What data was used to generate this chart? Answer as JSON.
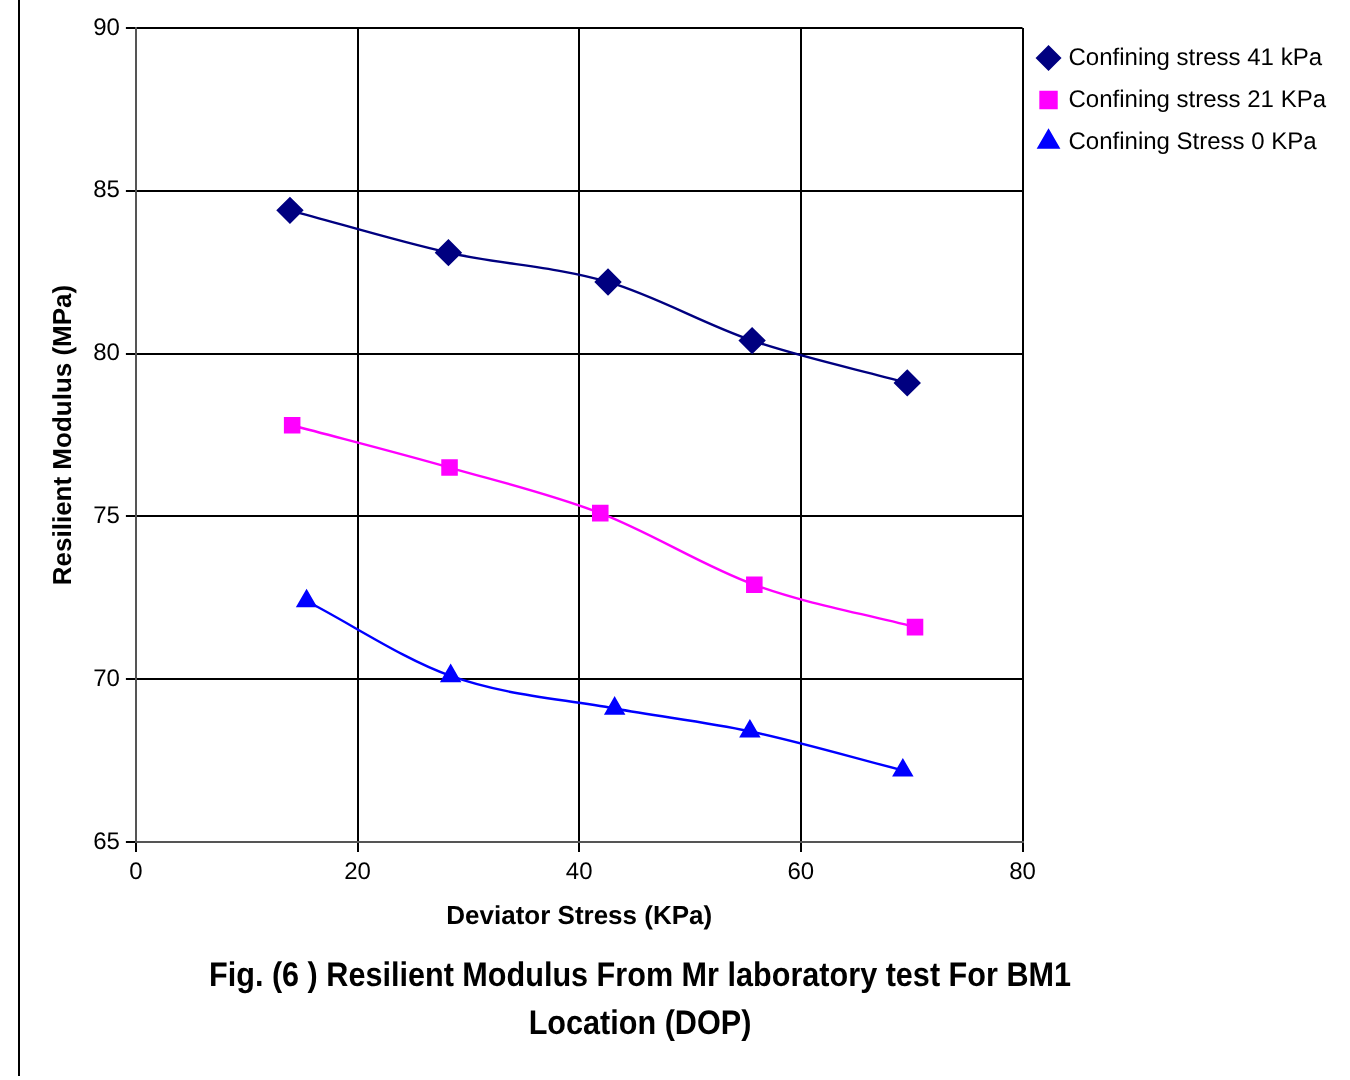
{
  "chart_data": {
    "type": "line",
    "title": "Fig. (6 )  Resilient Modulus From Mr laboratory test For  BM1 Location (DOP)",
    "xlabel": "Deviator Stress (KPa)",
    "ylabel": "Resilient Modulus (MPa)",
    "xlim": [
      0,
      80
    ],
    "xticks": [
      0,
      20,
      40,
      60,
      80
    ],
    "ylim": [
      65,
      90
    ],
    "yticks": [
      65,
      70,
      75,
      80,
      85,
      90
    ],
    "grid": true,
    "legend": "top right",
    "line_style": "solid",
    "series": [
      {
        "name": "Confining stress 41 kPa",
        "color": "#000080",
        "marker": "diamond",
        "x": [
          13.9,
          28.2,
          42.6,
          55.6,
          69.6
        ],
        "values": [
          84.4,
          83.1,
          82.2,
          80.4,
          79.1
        ]
      },
      {
        "name": "Confining stress 21 KPa",
        "color": "#ff00ff",
        "marker": "square",
        "x": [
          14.1,
          28.3,
          41.9,
          55.8,
          70.3
        ],
        "values": [
          77.8,
          76.5,
          75.1,
          72.9,
          71.6
        ]
      },
      {
        "name": "Confining Stress 0 KPa",
        "color": "#0000ff",
        "marker": "triangle",
        "x": [
          15.4,
          28.4,
          43.2,
          55.4,
          69.2
        ],
        "values": [
          72.4,
          70.1,
          69.1,
          68.4,
          67.2
        ]
      }
    ]
  }
}
